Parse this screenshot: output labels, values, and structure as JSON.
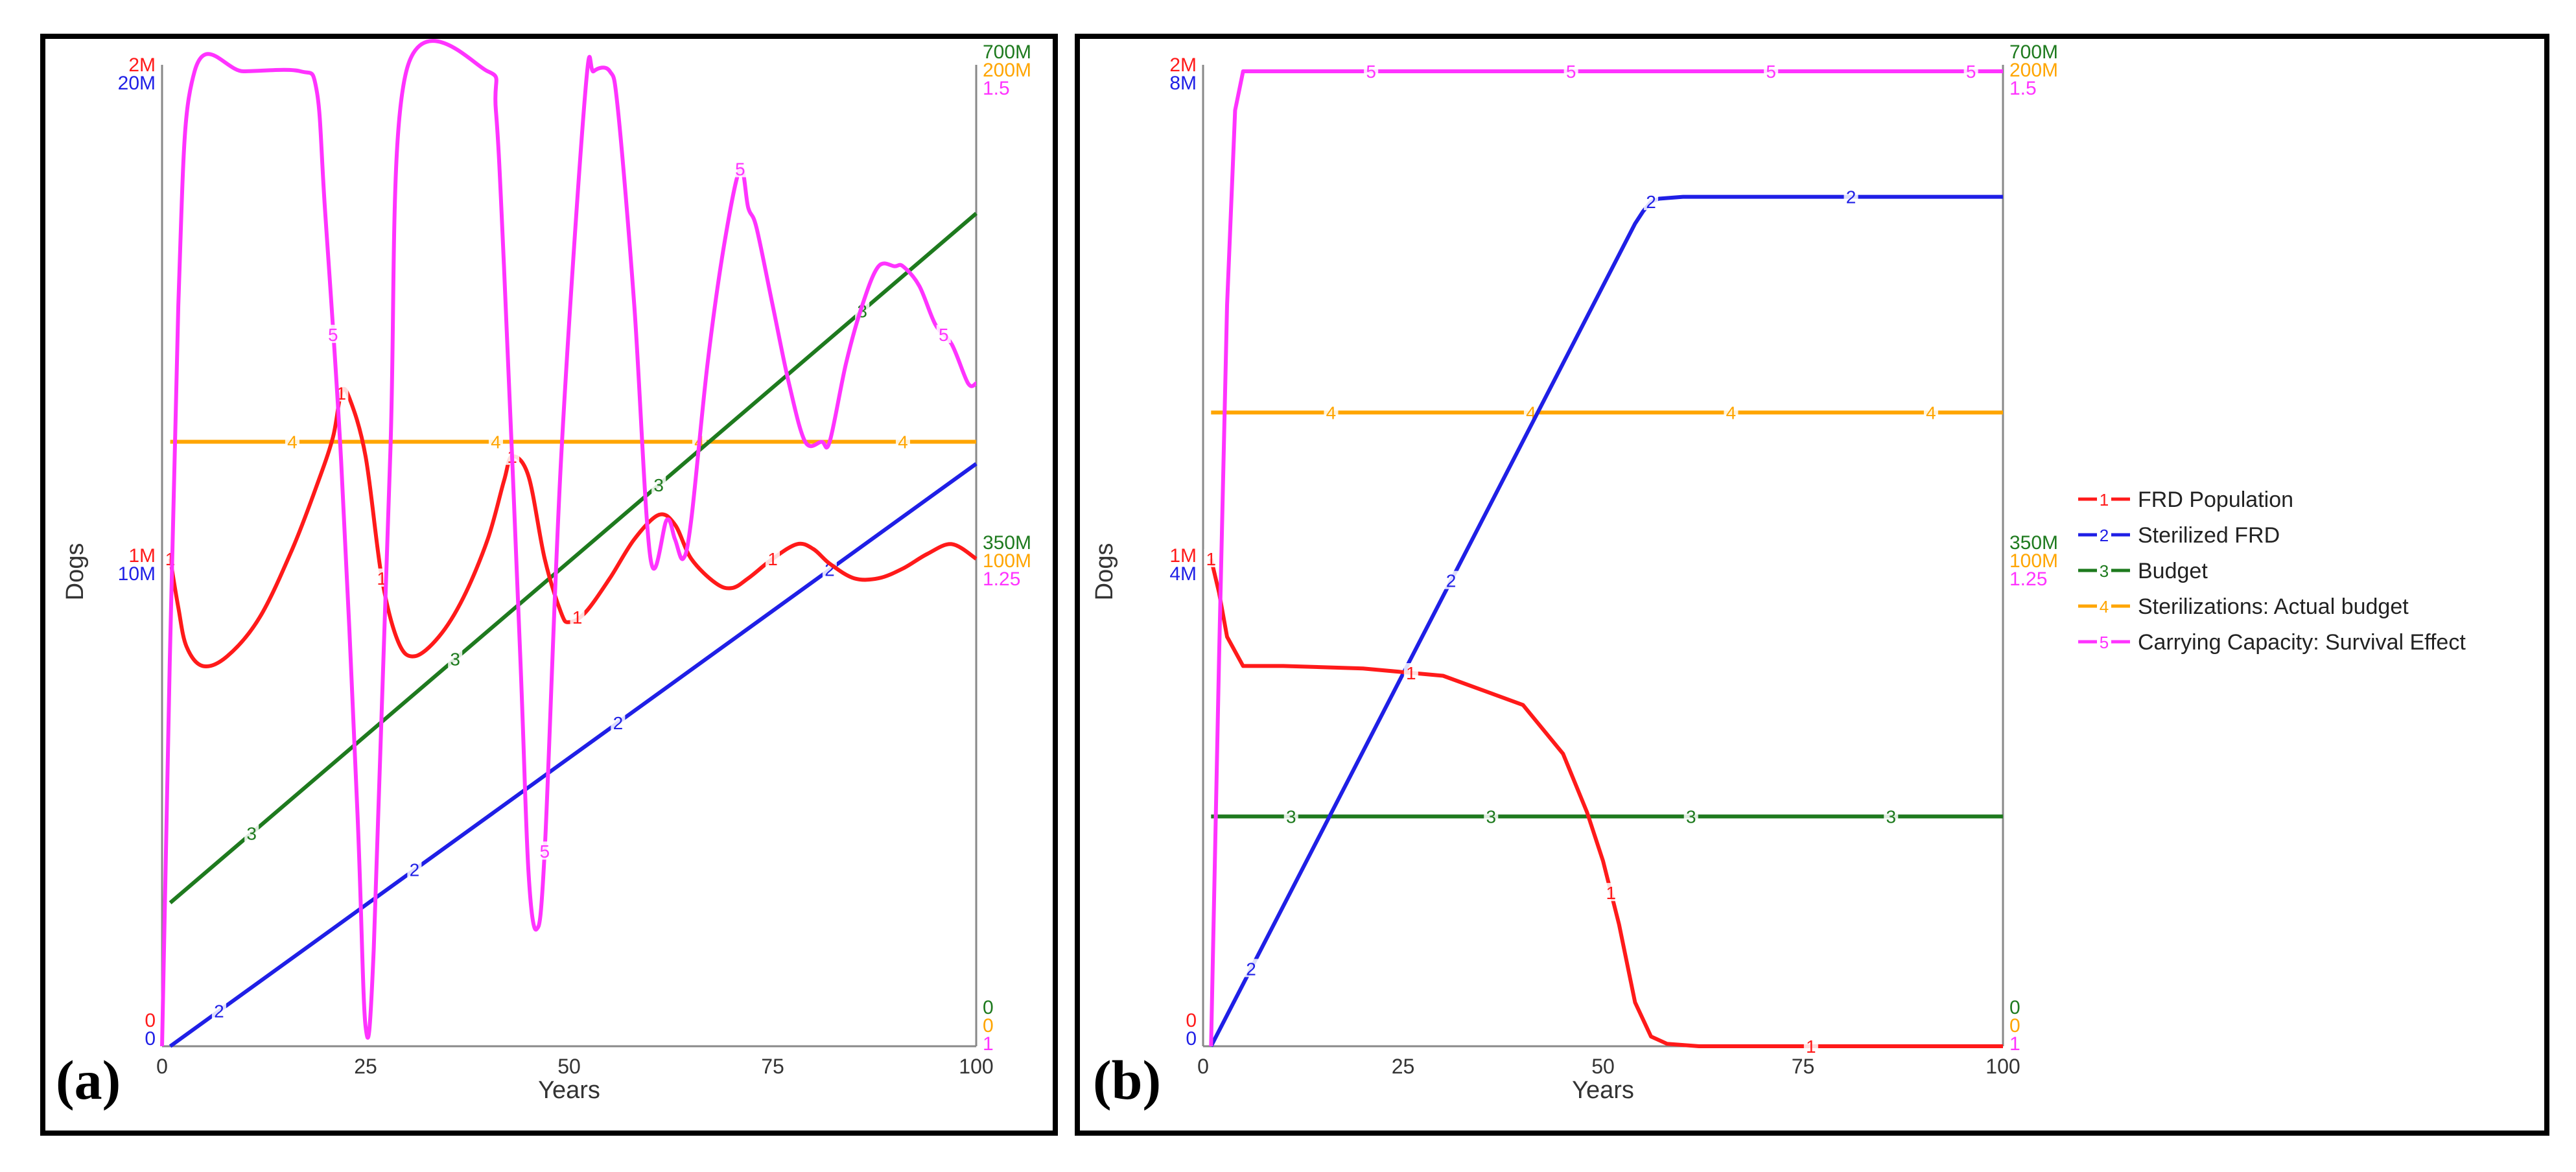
{
  "colors": {
    "frd_population": "#ff1a1a",
    "sterilized_frd": "#1f1fe6",
    "budget": "#1e7a1e",
    "sterilizations_budget": "#ffa500",
    "carrying_capacity": "#ff33ff",
    "axis": "#888888"
  },
  "chart_data": [
    {
      "panel_label": "(a)",
      "type": "line",
      "title": "",
      "xlabel": "Years",
      "ylabel": "Dogs",
      "x_range": [
        0,
        100
      ],
      "x_ticks": [
        "0",
        "25",
        "50",
        "75",
        "100"
      ],
      "left_axes": [
        {
          "series": "FRD Population",
          "color": "#ff1a1a",
          "labels": [
            "0",
            "1M",
            "2M"
          ]
        },
        {
          "series": "Sterilized FRD",
          "color": "#1f1fe6",
          "labels": [
            "0",
            "10M",
            "20M"
          ]
        }
      ],
      "right_axes": [
        {
          "series": "Budget",
          "color": "#1e7a1e",
          "labels": [
            "0",
            "350M",
            "700M"
          ]
        },
        {
          "series": "Sterilizations: Actual budget",
          "color": "#ffa500",
          "labels": [
            "0",
            "100M",
            "200M"
          ]
        },
        {
          "series": "Carrying Capacity: Survival Effect",
          "color": "#ff33ff",
          "labels": [
            "1",
            "1.25",
            "1.5"
          ]
        }
      ],
      "series": [
        {
          "id": "1",
          "name": "FRD Population",
          "color": "#ff1a1a",
          "y_range": [
            0,
            2000000
          ],
          "x": [
            1,
            2,
            3,
            5,
            8,
            12,
            16,
            19,
            21,
            22,
            23,
            25,
            27,
            29,
            31,
            34,
            37,
            40,
            42,
            43,
            45,
            47,
            49,
            50,
            52,
            55,
            58,
            61,
            63,
            65,
            68,
            70,
            72,
            75,
            78,
            80,
            82,
            85,
            88,
            91,
            94,
            97,
            100
          ],
          "y": [
            1000000,
            900000,
            820000,
            780000,
            800000,
            880000,
            1020000,
            1150000,
            1250000,
            1340000,
            1330000,
            1210000,
            960000,
            830000,
            800000,
            840000,
            920000,
            1040000,
            1160000,
            1210000,
            1170000,
            1000000,
            890000,
            870000,
            890000,
            960000,
            1040000,
            1090000,
            1070000,
            1000000,
            950000,
            940000,
            960000,
            1000000,
            1030000,
            1020000,
            990000,
            960000,
            960000,
            980000,
            1010000,
            1030000,
            1000000
          ],
          "markers": [
            1,
            22,
            27,
            43,
            51,
            75
          ]
        },
        {
          "id": "2",
          "name": "Sterilized FRD",
          "color": "#1f1fe6",
          "y_range": [
            0,
            20000000
          ],
          "x": [
            1,
            100
          ],
          "y": [
            0,
            11950000
          ],
          "markers": [
            7,
            31,
            56,
            82
          ]
        },
        {
          "id": "3",
          "name": "Budget",
          "color": "#1e7a1e",
          "y_range": [
            0,
            700000000
          ],
          "x": [
            1,
            100
          ],
          "y": [
            103000000,
            598000000
          ],
          "markers": [
            11,
            36,
            61,
            86
          ]
        },
        {
          "id": "4",
          "name": "Sterilizations: Actual budget",
          "color": "#ffa500",
          "y_range": [
            0,
            200000000
          ],
          "x": [
            1,
            100
          ],
          "y": [
            124000000,
            124000000
          ],
          "markers": [
            16,
            41,
            66,
            91
          ]
        },
        {
          "id": "5",
          "name": "Carrying Capacity: Survival Effect",
          "color": "#ff33ff",
          "y_range": [
            1,
            1.5
          ],
          "x": [
            0,
            2,
            4,
            10,
            17,
            19,
            20,
            22,
            24,
            25,
            26,
            28,
            30,
            40,
            41,
            42,
            44,
            45,
            46,
            47,
            49,
            52,
            53,
            55,
            56,
            58,
            60,
            62,
            63,
            64,
            65,
            67,
            69,
            71,
            72,
            73,
            75,
            77,
            79,
            81,
            82,
            84,
            86,
            88,
            90,
            91,
            93,
            95,
            97,
            99,
            100
          ],
          "y": [
            1.0,
            1.38,
            1.5,
            1.5,
            1.5,
            1.49,
            1.43,
            1.3,
            1.12,
            1.01,
            1.05,
            1.3,
            1.5,
            1.5,
            1.48,
            1.4,
            1.2,
            1.09,
            1.06,
            1.1,
            1.3,
            1.49,
            1.5,
            1.5,
            1.48,
            1.38,
            1.25,
            1.27,
            1.26,
            1.25,
            1.27,
            1.35,
            1.41,
            1.45,
            1.43,
            1.42,
            1.38,
            1.34,
            1.31,
            1.31,
            1.31,
            1.35,
            1.38,
            1.4,
            1.4,
            1.4,
            1.39,
            1.37,
            1.36,
            1.34,
            1.34
          ],
          "markers": [
            21,
            47,
            71,
            96
          ]
        }
      ]
    },
    {
      "panel_label": "(b)",
      "type": "line",
      "title": "",
      "xlabel": "Years",
      "ylabel": "Dogs",
      "x_range": [
        0,
        100
      ],
      "x_ticks": [
        "0",
        "25",
        "50",
        "75",
        "100"
      ],
      "left_axes": [
        {
          "series": "FRD Population",
          "color": "#ff1a1a",
          "labels": [
            "0",
            "1M",
            "2M"
          ]
        },
        {
          "series": "Sterilized FRD",
          "color": "#1f1fe6",
          "labels": [
            "0",
            "4M",
            "8M"
          ]
        }
      ],
      "right_axes": [
        {
          "series": "Budget",
          "color": "#1e7a1e",
          "labels": [
            "0",
            "350M",
            "700M"
          ]
        },
        {
          "series": "Sterilizations: Actual budget",
          "color": "#ffa500",
          "labels": [
            "0",
            "100M",
            "200M"
          ]
        },
        {
          "series": "Carrying Capacity: Survival Effect",
          "color": "#ff33ff",
          "labels": [
            "1",
            "1.25",
            "1.5"
          ]
        }
      ],
      "legend": {
        "placement": "right",
        "items": [
          {
            "id": "1",
            "label": "FRD Population",
            "color": "#ff1a1a"
          },
          {
            "id": "2",
            "label": "Sterilized FRD",
            "color": "#1f1fe6"
          },
          {
            "id": "3",
            "label": "Budget",
            "color": "#1e7a1e"
          },
          {
            "id": "4",
            "label": "Sterilizations: Actual budget",
            "color": "#ffa500"
          },
          {
            "id": "5",
            "label": "Carrying Capacity: Survival Effect",
            "color": "#ff33ff"
          }
        ]
      },
      "series": [
        {
          "id": "1",
          "name": "FRD Population",
          "color": "#ff1a1a",
          "y_range": [
            0,
            2000000
          ],
          "x": [
            1,
            2,
            3,
            5,
            10,
            20,
            30,
            40,
            45,
            48,
            50,
            52,
            54,
            56,
            58,
            62,
            70,
            80,
            90,
            100
          ],
          "y": [
            1000000,
            930000,
            840000,
            780000,
            780000,
            775000,
            760000,
            700000,
            600000,
            480000,
            380000,
            250000,
            90000,
            20000,
            5000,
            0,
            0,
            0,
            0,
            0
          ],
          "markers": [
            1,
            26,
            51,
            76
          ]
        },
        {
          "id": "2",
          "name": "Sterilized FRD",
          "color": "#1f1fe6",
          "y_range": [
            0,
            8000000
          ],
          "x": [
            1,
            54,
            55,
            56,
            57,
            60,
            70,
            80,
            90,
            100
          ],
          "y": [
            0,
            6750000,
            6850000,
            6930000,
            6955000,
            6970000,
            6970000,
            6970000,
            6970000,
            6970000
          ],
          "markers": [
            6,
            31,
            56,
            81
          ]
        },
        {
          "id": "3",
          "name": "Budget",
          "color": "#1e7a1e",
          "y_range": [
            0,
            700000000
          ],
          "x": [
            1,
            100
          ],
          "y": [
            165000000,
            165000000
          ],
          "markers": [
            11,
            36,
            61,
            86
          ]
        },
        {
          "id": "4",
          "name": "Sterilizations: Actual budget",
          "color": "#ffa500",
          "y_range": [
            0,
            200000000
          ],
          "x": [
            1,
            100
          ],
          "y": [
            130000000,
            130000000
          ],
          "markers": [
            16,
            41,
            66,
            91
          ]
        },
        {
          "id": "5",
          "name": "Carrying Capacity: Survival Effect",
          "color": "#ff33ff",
          "y_range": [
            1,
            1.5
          ],
          "x": [
            1,
            2,
            3,
            4,
            5,
            10,
            25,
            50,
            75,
            100
          ],
          "y": [
            1.0,
            1.2,
            1.38,
            1.48,
            1.5,
            1.5,
            1.5,
            1.5,
            1.5,
            1.5
          ],
          "markers": [
            21,
            46,
            71,
            96
          ]
        }
      ]
    }
  ]
}
